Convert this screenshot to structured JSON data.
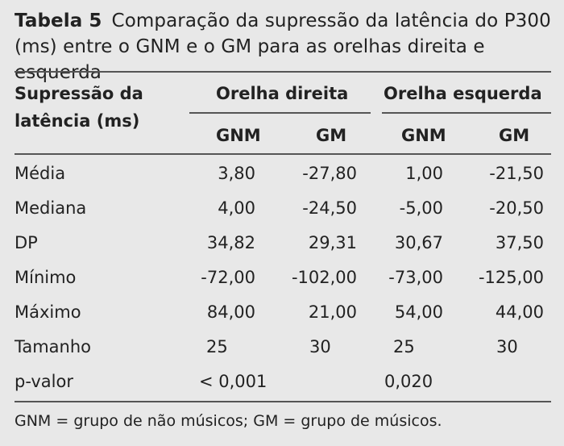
{
  "table": {
    "label": "Tabela 5",
    "caption": "Comparação da supressão da latência do P300 (ms) entre o GNM e o GM para as orelhas direita e esquerda",
    "row_header_line1": "Supressão da",
    "row_header_line2": "latência (ms)",
    "group_right": "Orelha direita",
    "group_left": "Orelha esquerda",
    "col1": "GNM",
    "col2": "GM",
    "col3": "GNM",
    "col4": "GM",
    "rows": [
      {
        "label": "Média",
        "v": [
          "3,80",
          "-27,80",
          "1,00",
          "-21,50"
        ]
      },
      {
        "label": "Mediana",
        "v": [
          "4,00",
          "-24,50",
          "-5,00",
          "-20,50"
        ]
      },
      {
        "label": "DP",
        "v": [
          "34,82",
          "29,31",
          "30,67",
          "37,50"
        ]
      },
      {
        "label": "Mínimo",
        "v": [
          "-72,00",
          "-102,00",
          "-73,00",
          "-125,00"
        ]
      },
      {
        "label": "Máximo",
        "v": [
          "84,00",
          "21,00",
          "54,00",
          "44,00"
        ]
      },
      {
        "label": "Tamanho",
        "v": [
          "25",
          "30",
          "25",
          "30"
        ]
      }
    ],
    "pvalue_label": "p-valor",
    "pvalue_right": "< 0,001",
    "pvalue_left": "0,020",
    "footnote": "GNM = grupo de não músicos; GM = grupo de músicos."
  }
}
